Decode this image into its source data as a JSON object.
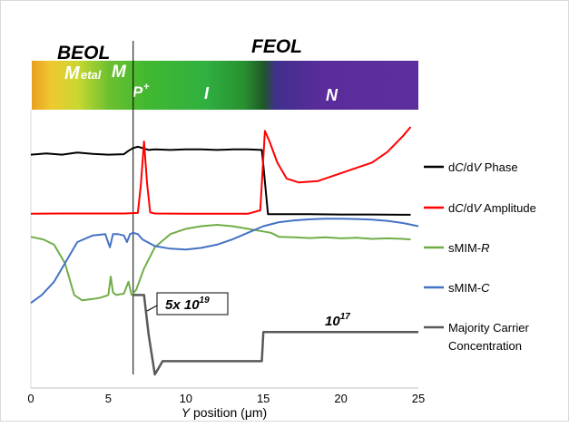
{
  "chart_data": {
    "type": "line",
    "header_labels": {
      "beol": "BEOL",
      "feol": "FEOL",
      "metal_big": "M",
      "metal_rest": "etal",
      "m": "M",
      "p_main": "P",
      "p_sup": "+",
      "i": "I",
      "n": "N"
    },
    "colorbar_stops": [
      "#e8a020",
      "#f0c830",
      "#c8d830",
      "#6cc030",
      "#40b830",
      "#30b040",
      "#289030",
      "#205828",
      "#40308c",
      "#5a2c9c",
      "#5c2e9e"
    ],
    "xlabel_prefix": "Y",
    "xlabel_rest": " position (μm)",
    "xlim": [
      0,
      25
    ],
    "xticks": [
      "0",
      "5",
      "10",
      "15",
      "20",
      "25"
    ],
    "divider_x": 6.6,
    "series": [
      {
        "name": "dC/dV Phase",
        "name_parts": [
          "d",
          "C",
          "/d",
          "V",
          " Phase"
        ],
        "color": "#000000",
        "x": [
          0,
          1,
          2,
          3,
          4,
          5,
          6,
          6.3,
          6.6,
          6.9,
          7.2,
          7.6,
          8,
          9,
          10,
          11,
          12,
          13,
          14,
          14.9,
          15.0,
          15.3,
          16,
          18,
          20,
          22,
          24,
          24.5
        ],
        "y": [
          0.83,
          0.835,
          0.83,
          0.838,
          0.833,
          0.83,
          0.832,
          0.845,
          0.855,
          0.86,
          0.855,
          0.848,
          0.85,
          0.848,
          0.85,
          0.85,
          0.848,
          0.85,
          0.85,
          0.848,
          0.79,
          0.605,
          0.605,
          0.605,
          0.604,
          0.604,
          0.603,
          0.603
        ]
      },
      {
        "name": "dC/dV Amplitude",
        "name_parts": [
          "d",
          "C",
          "/d",
          "V",
          " Amplitude"
        ],
        "color": "#ff0000",
        "x": [
          0,
          2,
          4,
          6,
          6.9,
          7.1,
          7.3,
          7.5,
          7.7,
          8,
          10,
          12,
          14,
          14.8,
          15.1,
          15.4,
          15.9,
          16.5,
          17.3,
          18.5,
          20,
          21,
          22,
          23,
          24,
          24.5
        ],
        "y": [
          0.607,
          0.608,
          0.608,
          0.608,
          0.61,
          0.72,
          0.88,
          0.72,
          0.612,
          0.608,
          0.607,
          0.607,
          0.607,
          0.62,
          0.92,
          0.88,
          0.8,
          0.74,
          0.725,
          0.73,
          0.76,
          0.78,
          0.8,
          0.84,
          0.9,
          0.935
        ]
      },
      {
        "name": "sMIM-R",
        "name_parts": [
          "sMIM-",
          "R"
        ],
        "color": "#70ad47",
        "x": [
          0,
          0.8,
          1.5,
          2.2,
          2.8,
          3.3,
          4,
          4.5,
          5,
          5.15,
          5.3,
          5.5,
          6,
          6.3,
          6.5,
          6.8,
          7.3,
          8,
          9,
          10,
          11,
          12,
          13,
          14,
          15,
          15.5,
          16,
          17,
          18,
          19,
          20,
          21,
          22,
          23,
          24,
          24.5
        ],
        "y": [
          0.52,
          0.51,
          0.49,
          0.42,
          0.3,
          0.28,
          0.285,
          0.29,
          0.3,
          0.37,
          0.31,
          0.3,
          0.305,
          0.35,
          0.3,
          0.32,
          0.4,
          0.48,
          0.53,
          0.55,
          0.56,
          0.565,
          0.56,
          0.55,
          0.54,
          0.535,
          0.52,
          0.518,
          0.515,
          0.518,
          0.514,
          0.516,
          0.512,
          0.514,
          0.512,
          0.51
        ]
      },
      {
        "name": "sMIM-C",
        "name_parts": [
          "sMIM-",
          "C"
        ],
        "color": "#4472c4",
        "x": [
          0,
          0.7,
          1.5,
          2.2,
          3,
          4,
          4.8,
          5.1,
          5.3,
          5.6,
          6,
          6.2,
          6.4,
          6.6,
          6.9,
          7.2,
          8,
          9,
          10,
          11,
          12,
          13,
          14,
          15,
          16,
          17,
          18,
          19,
          20,
          21,
          22,
          23,
          24,
          25
        ],
        "y": [
          0.27,
          0.3,
          0.35,
          0.42,
          0.5,
          0.525,
          0.53,
          0.48,
          0.53,
          0.53,
          0.525,
          0.5,
          0.53,
          0.535,
          0.53,
          0.51,
          0.485,
          0.475,
          0.472,
          0.478,
          0.49,
          0.51,
          0.535,
          0.56,
          0.575,
          0.582,
          0.586,
          0.588,
          0.588,
          0.587,
          0.585,
          0.58,
          0.572,
          0.56
        ]
      },
      {
        "name": "Majority Carrier Concentration",
        "name_lines": [
          "Majority Carrier",
          "Concentration"
        ],
        "color": "#595959",
        "x": [
          6.6,
          7.3,
          7.3,
          7.6,
          8.0,
          8.2,
          8.5,
          10,
          14.9,
          14.95,
          15.0,
          20,
          25
        ],
        "y": [
          0.3,
          0.3,
          0.3,
          0.15,
          0.0,
          0.02,
          0.05,
          0.05,
          0.05,
          0.1,
          0.16,
          0.16,
          0.16
        ]
      }
    ],
    "annotations": {
      "conc_high_base": "5x 10",
      "conc_high_exp": "19",
      "conc_low_base": "10",
      "conc_low_exp": "17"
    }
  }
}
